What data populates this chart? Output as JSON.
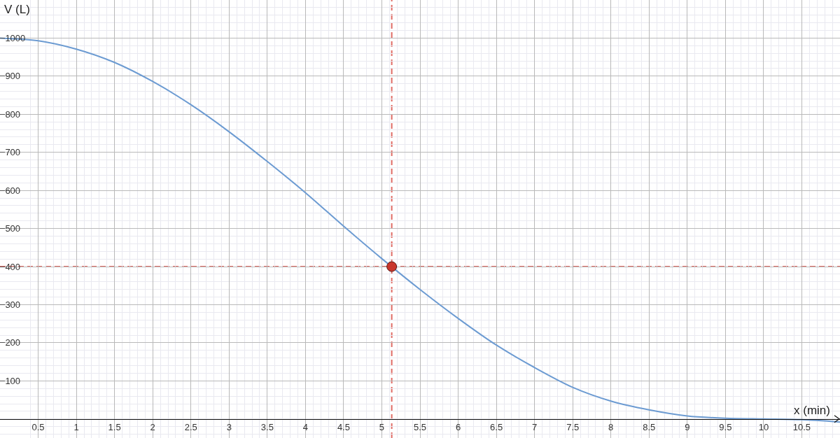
{
  "chart_data": {
    "type": "line",
    "xlabel": "x (min)",
    "ylabel": "V (L)",
    "x": [
      0,
      0.5,
      1,
      1.5,
      2,
      2.5,
      3,
      3.5,
      4,
      4.5,
      5,
      5.5,
      6,
      6.5,
      7,
      7.5,
      8,
      8.5,
      9,
      9.5,
      10,
      10.5,
      11
    ],
    "series": [
      {
        "color": "#6c9bd2",
        "values": [
          1000,
          993,
          971,
          936,
          886,
          825,
          754,
          676,
          594,
          506,
          421,
          340,
          264,
          194,
          135,
          83,
          47,
          24,
          8,
          2,
          0,
          -2,
          -8
        ]
      },
      {
        "type": "scatter",
        "color": "#c9372c",
        "x": [
          5.13
        ],
        "values": [
          400
        ],
        "marker": "circle"
      }
    ],
    "xlim": [
      0,
      11
    ],
    "ylim": [
      -50,
      1100
    ],
    "xticks": [
      0.5,
      1,
      1.5,
      2,
      2.5,
      3,
      3.5,
      4,
      4.5,
      5,
      5.5,
      6,
      6.5,
      7,
      7.5,
      8,
      8.5,
      9,
      9.5,
      10,
      10.5
    ],
    "yticks": [
      100,
      200,
      300,
      400,
      500,
      600,
      700,
      800,
      900,
      1000
    ],
    "grid": true,
    "ref_lines": [
      {
        "axis": "x",
        "value": 5.13,
        "color": "#e06c65",
        "line_style": "dashed"
      },
      {
        "axis": "y",
        "value": 400,
        "color": "#e06c65",
        "line_style": "dashed"
      }
    ]
  }
}
